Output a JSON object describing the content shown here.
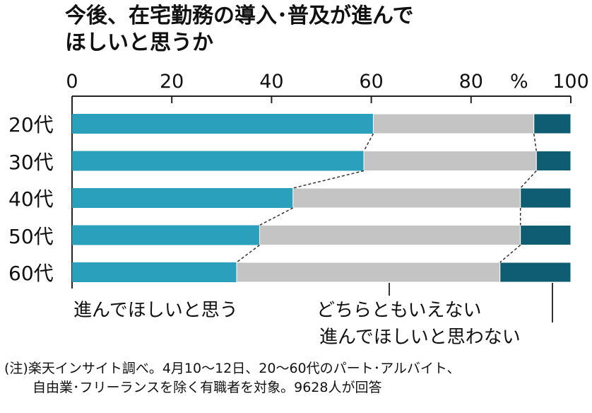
{
  "chart_data": {
    "type": "bar",
    "stacked": true,
    "orientation": "horizontal",
    "title": "今後、在宅勤務の導入･普及が進んでほしいと思うか",
    "title_lines": [
      "今後、在宅勤務の導入･普及が進んで",
      "ほしいと思うか"
    ],
    "xlabel": "%",
    "xlim": [
      0,
      100
    ],
    "xticks": [
      "0",
      "20",
      "40",
      "60",
      "80",
      "100"
    ],
    "categories": [
      "20代",
      "30代",
      "40代",
      "50代",
      "60代"
    ],
    "series": [
      {
        "name": "進んでほしいと思う",
        "color": "#2aa0bd",
        "values": [
          60.4,
          58.5,
          44.3,
          37.6,
          33.0
        ]
      },
      {
        "name": "どちらともいえない",
        "color": "#c4c4c4",
        "values": [
          32.2,
          34.6,
          45.6,
          52.3,
          52.8
        ]
      },
      {
        "name": "進んでほしいと思わない",
        "color": "#0f5d72",
        "values": [
          7.4,
          6.9,
          10.1,
          10.1,
          14.2
        ]
      }
    ],
    "legend": "bottom",
    "note": [
      "(注)楽天インサイト調べ。4月10～12日、20～60代のパート･アルバイト、",
      "自由業･フリーランスを除く有職者を対象。9628人が回答"
    ]
  }
}
